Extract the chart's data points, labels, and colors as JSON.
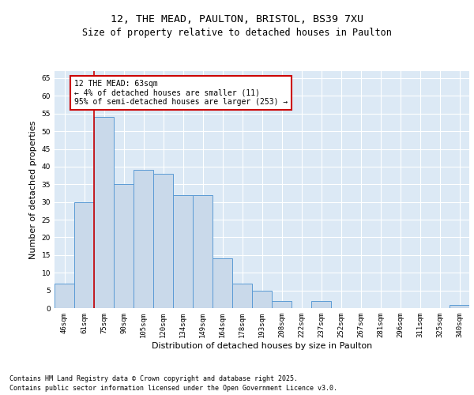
{
  "title_line1": "12, THE MEAD, PAULTON, BRISTOL, BS39 7XU",
  "title_line2": "Size of property relative to detached houses in Paulton",
  "xlabel": "Distribution of detached houses by size in Paulton",
  "ylabel": "Number of detached properties",
  "categories": [
    "46sqm",
    "61sqm",
    "75sqm",
    "90sqm",
    "105sqm",
    "120sqm",
    "134sqm",
    "149sqm",
    "164sqm",
    "178sqm",
    "193sqm",
    "208sqm",
    "222sqm",
    "237sqm",
    "252sqm",
    "267sqm",
    "281sqm",
    "296sqm",
    "311sqm",
    "325sqm",
    "340sqm"
  ],
  "values": [
    7,
    30,
    54,
    35,
    39,
    38,
    32,
    32,
    14,
    7,
    5,
    2,
    0,
    2,
    0,
    0,
    0,
    0,
    0,
    0,
    1
  ],
  "bar_color": "#c9d9ea",
  "bar_edge_color": "#5b9bd5",
  "annotation_text": "12 THE MEAD: 63sqm\n← 4% of detached houses are smaller (11)\n95% of semi-detached houses are larger (253) →",
  "annotation_box_color": "#ffffff",
  "annotation_box_edge_color": "#cc0000",
  "redline_color": "#cc0000",
  "ylim": [
    0,
    67
  ],
  "yticks": [
    0,
    5,
    10,
    15,
    20,
    25,
    30,
    35,
    40,
    45,
    50,
    55,
    60,
    65
  ],
  "background_color": "#dce9f5",
  "grid_color": "#ffffff",
  "footer_line1": "Contains HM Land Registry data © Crown copyright and database right 2025.",
  "footer_line2": "Contains public sector information licensed under the Open Government Licence v3.0.",
  "title_fontsize": 9.5,
  "subtitle_fontsize": 8.5,
  "tick_fontsize": 6.5,
  "label_fontsize": 8,
  "annotation_fontsize": 7,
  "footer_fontsize": 6
}
